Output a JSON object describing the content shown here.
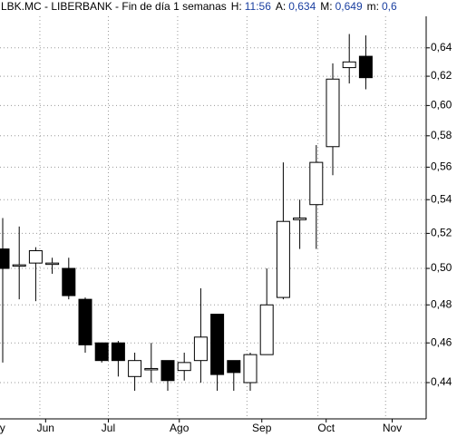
{
  "chart_data": {
    "type": "candlestick",
    "title": "LBK.MC - LIBERBANK - Fin de día 1 semanas",
    "info": [
      {
        "label": "H:",
        "value": "11:56"
      },
      {
        "label": "A:",
        "value": "0,634"
      },
      {
        "label": "M:",
        "value": "0,649"
      },
      {
        "label": "m:",
        "value": "0,6"
      }
    ],
    "categories": [
      null,
      null,
      null,
      null,
      null,
      null,
      null,
      null,
      null,
      null,
      null,
      null,
      null,
      null,
      null,
      null,
      null,
      null,
      null,
      null,
      null,
      null,
      null
    ],
    "open": [
      0.511,
      0.502,
      0.503,
      0.503,
      0.5,
      0.483,
      0.46,
      0.46,
      0.443,
      0.447,
      0.451,
      0.446,
      0.451,
      0.475,
      0.451,
      0.44,
      0.454,
      0.484,
      0.528,
      0.537,
      0.573,
      0.626,
      0.634
    ],
    "high": [
      0.529,
      0.524,
      0.512,
      0.506,
      0.506,
      0.484,
      0.46,
      0.461,
      0.455,
      0.46,
      0.451,
      0.455,
      0.489,
      0.475,
      0.451,
      0.455,
      0.5,
      0.563,
      0.54,
      0.574,
      0.629,
      0.65,
      0.649
    ],
    "low": [
      0.45,
      0.483,
      0.482,
      0.497,
      0.483,
      0.455,
      0.45,
      0.443,
      0.436,
      0.44,
      0.436,
      0.441,
      0.44,
      0.436,
      0.436,
      0.436,
      0.454,
      0.483,
      0.511,
      0.511,
      0.555,
      0.615,
      0.611
    ],
    "close": [
      0.5,
      0.502,
      0.51,
      0.503,
      0.485,
      0.459,
      0.451,
      0.451,
      0.451,
      0.447,
      0.441,
      0.45,
      0.463,
      0.444,
      0.445,
      0.454,
      0.48,
      0.527,
      0.529,
      0.563,
      0.618,
      0.63,
      0.619
    ],
    "up_color": "#ffffff",
    "down_color": "#000000",
    "log_y": true,
    "ylim": [
      0.4225,
      0.663
    ],
    "yticks": [
      {
        "value": 0.44,
        "label": "0,44"
      },
      {
        "value": 0.46,
        "label": "0,46"
      },
      {
        "value": 0.48,
        "label": "0,48"
      },
      {
        "value": 0.5,
        "label": "0,50"
      },
      {
        "value": 0.52,
        "label": "0,52"
      },
      {
        "value": 0.54,
        "label": "0,54"
      },
      {
        "value": 0.56,
        "label": "0,56"
      },
      {
        "value": 0.58,
        "label": "0,58"
      },
      {
        "value": 0.6,
        "label": "0,60"
      },
      {
        "value": 0.62,
        "label": "0,62"
      },
      {
        "value": 0.64,
        "label": "0,64"
      }
    ],
    "xticks": [
      {
        "value": -0.2,
        "label": "ay"
      },
      {
        "value": 2.6,
        "label": "Jun"
      },
      {
        "value": 6.4,
        "label": "Jul"
      },
      {
        "value": 10.7,
        "label": "Ago"
      },
      {
        "value": 15.7,
        "label": "Sep"
      },
      {
        "value": 19.6,
        "label": "Oct"
      },
      {
        "value": 23.6,
        "label": "Nov"
      }
    ],
    "xgrid": [
      2.25,
      6.4,
      10.6,
      14.8,
      19.1,
      23.2
    ],
    "grid": true
  }
}
